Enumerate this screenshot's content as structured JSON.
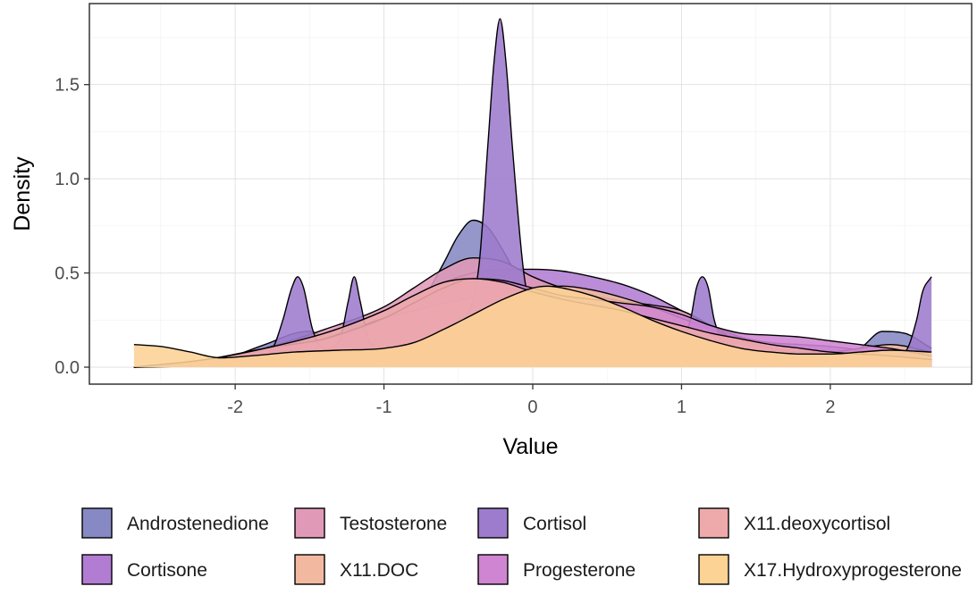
{
  "chart_data": {
    "type": "area",
    "subtype": "density",
    "title": "",
    "xlabel": "Value",
    "ylabel": "Density",
    "xlim": [
      -2.7,
      2.7
    ],
    "ylim": [
      0,
      1.85
    ],
    "x_ticks": [
      -2,
      -1,
      0,
      1,
      2
    ],
    "y_ticks": [
      0.0,
      0.5,
      1.0,
      1.5
    ],
    "x_tick_labels": [
      "-2",
      "-1",
      "0",
      "1",
      "2"
    ],
    "y_tick_labels": [
      "0.0",
      "0.5",
      "1.0",
      "1.5"
    ],
    "grid": true,
    "legend_position": "bottom",
    "series": [
      {
        "name": "Androstenedione",
        "color": "#8689c4",
        "x": [
          -2.68,
          -2.2,
          -1.8,
          -1.6,
          -1.5,
          -1.4,
          -1.2,
          -1.0,
          -0.8,
          -0.6,
          -0.5,
          -0.4,
          -0.3,
          -0.2,
          -0.1,
          0.0,
          0.2,
          0.4,
          0.6,
          0.8,
          1.0,
          1.2,
          1.4,
          1.6,
          1.8,
          2.0,
          2.2,
          2.35,
          2.5,
          2.68
        ],
        "values": [
          0.0,
          0.02,
          0.12,
          0.18,
          0.19,
          0.16,
          0.12,
          0.15,
          0.28,
          0.55,
          0.7,
          0.78,
          0.74,
          0.62,
          0.48,
          0.4,
          0.36,
          0.34,
          0.32,
          0.3,
          0.27,
          0.22,
          0.15,
          0.09,
          0.06,
          0.05,
          0.1,
          0.19,
          0.18,
          0.1
        ]
      },
      {
        "name": "Cortisone",
        "color": "#b27cd3",
        "x": [
          -2.68,
          -2.2,
          -1.8,
          -1.4,
          -1.0,
          -0.8,
          -0.6,
          -0.4,
          -0.2,
          0.0,
          0.2,
          0.4,
          0.6,
          0.8,
          1.0,
          1.2,
          1.4,
          1.6,
          1.8,
          2.0,
          2.2,
          2.4,
          2.68
        ],
        "values": [
          0.0,
          0.03,
          0.1,
          0.18,
          0.3,
          0.38,
          0.45,
          0.5,
          0.52,
          0.52,
          0.51,
          0.48,
          0.44,
          0.38,
          0.3,
          0.22,
          0.16,
          0.13,
          0.12,
          0.11,
          0.09,
          0.06,
          0.03
        ]
      },
      {
        "name": "Testosterone",
        "color": "#e09ab7",
        "x": [
          -2.68,
          -2.2,
          -1.8,
          -1.4,
          -1.0,
          -0.8,
          -0.6,
          -0.4,
          -0.2,
          0.0,
          0.2,
          0.4,
          0.6,
          0.8,
          1.0,
          1.2,
          1.4,
          1.6,
          1.8,
          2.0,
          2.2,
          2.4,
          2.68
        ],
        "values": [
          0.0,
          0.03,
          0.1,
          0.2,
          0.32,
          0.42,
          0.52,
          0.58,
          0.56,
          0.48,
          0.42,
          0.38,
          0.35,
          0.33,
          0.3,
          0.22,
          0.13,
          0.08,
          0.06,
          0.05,
          0.05,
          0.06,
          0.04
        ]
      },
      {
        "name": "X11.DOC",
        "color": "#f2b9a0",
        "x": [
          -2.68,
          -2.2,
          -1.8,
          -1.4,
          -1.0,
          -0.8,
          -0.6,
          -0.4,
          -0.2,
          0.0,
          0.2,
          0.4,
          0.6,
          0.8,
          1.0,
          1.2,
          1.4,
          1.6,
          1.8,
          2.0,
          2.2,
          2.4,
          2.68
        ],
        "values": [
          0.0,
          0.02,
          0.06,
          0.15,
          0.26,
          0.3,
          0.34,
          0.37,
          0.4,
          0.42,
          0.43,
          0.41,
          0.37,
          0.32,
          0.26,
          0.2,
          0.14,
          0.1,
          0.08,
          0.08,
          0.1,
          0.12,
          0.08
        ]
      },
      {
        "name": "Cortisol",
        "color": "#9d7bcd",
        "x": [
          -2.68,
          -2.0,
          -1.75,
          -1.68,
          -1.62,
          -1.58,
          -1.54,
          -1.48,
          -1.4,
          -1.3,
          -1.24,
          -1.2,
          -1.16,
          -1.1,
          -1.0,
          -0.8,
          -0.6,
          -0.45,
          -0.36,
          -0.3,
          -0.26,
          -0.22,
          -0.18,
          -0.14,
          -0.06,
          0.0,
          0.2,
          0.4,
          0.6,
          0.8,
          1.0,
          1.06,
          1.1,
          1.14,
          1.18,
          1.22,
          1.3,
          1.6,
          2.0,
          2.3,
          2.5,
          2.58,
          2.62,
          2.68
        ],
        "values": [
          0.0,
          0.02,
          0.1,
          0.25,
          0.42,
          0.48,
          0.42,
          0.2,
          0.1,
          0.14,
          0.35,
          0.48,
          0.35,
          0.14,
          0.1,
          0.12,
          0.18,
          0.26,
          0.55,
          1.2,
          1.62,
          1.85,
          1.62,
          1.2,
          0.5,
          0.3,
          0.22,
          0.2,
          0.19,
          0.17,
          0.15,
          0.25,
          0.42,
          0.48,
          0.42,
          0.25,
          0.12,
          0.07,
          0.05,
          0.05,
          0.08,
          0.25,
          0.4,
          0.48
        ]
      },
      {
        "name": "Progesterone",
        "color": "#cf85d1",
        "x": [
          -2.68,
          -2.2,
          -1.8,
          -1.4,
          -1.2,
          -1.0,
          -0.8,
          -0.6,
          -0.4,
          -0.2,
          0.0,
          0.2,
          0.4,
          0.6,
          0.8,
          1.0,
          1.2,
          1.4,
          1.6,
          1.8,
          2.0,
          2.2,
          2.4,
          2.68
        ],
        "values": [
          0.0,
          0.04,
          0.1,
          0.15,
          0.2,
          0.26,
          0.34,
          0.42,
          0.47,
          0.46,
          0.42,
          0.38,
          0.36,
          0.34,
          0.32,
          0.28,
          0.22,
          0.18,
          0.17,
          0.16,
          0.14,
          0.12,
          0.1,
          0.06
        ]
      },
      {
        "name": "X11.deoxycortisol",
        "color": "#eeaaaa",
        "x": [
          -2.68,
          -2.2,
          -1.8,
          -1.4,
          -1.0,
          -0.8,
          -0.6,
          -0.4,
          -0.2,
          0.0,
          0.2,
          0.4,
          0.6,
          0.8,
          1.0,
          1.2,
          1.4,
          1.6,
          1.8,
          2.0,
          2.2,
          2.4,
          2.68
        ],
        "values": [
          0.0,
          0.04,
          0.1,
          0.18,
          0.3,
          0.38,
          0.45,
          0.47,
          0.45,
          0.4,
          0.36,
          0.33,
          0.3,
          0.26,
          0.22,
          0.18,
          0.15,
          0.12,
          0.1,
          0.08,
          0.07,
          0.06,
          0.04
        ]
      },
      {
        "name": "X17.Hydroxyprogesterone",
        "color": "#fcd295",
        "x": [
          -2.68,
          -2.5,
          -2.3,
          -2.1,
          -1.9,
          -1.6,
          -1.3,
          -1.0,
          -0.8,
          -0.6,
          -0.4,
          -0.2,
          0.0,
          0.1,
          0.2,
          0.4,
          0.6,
          0.8,
          1.0,
          1.2,
          1.4,
          1.6,
          1.8,
          2.0,
          2.2,
          2.4,
          2.68
        ],
        "values": [
          0.12,
          0.11,
          0.08,
          0.05,
          0.06,
          0.08,
          0.09,
          0.1,
          0.13,
          0.2,
          0.28,
          0.36,
          0.42,
          0.43,
          0.42,
          0.38,
          0.32,
          0.25,
          0.19,
          0.14,
          0.1,
          0.08,
          0.07,
          0.07,
          0.08,
          0.09,
          0.08
        ]
      }
    ]
  }
}
